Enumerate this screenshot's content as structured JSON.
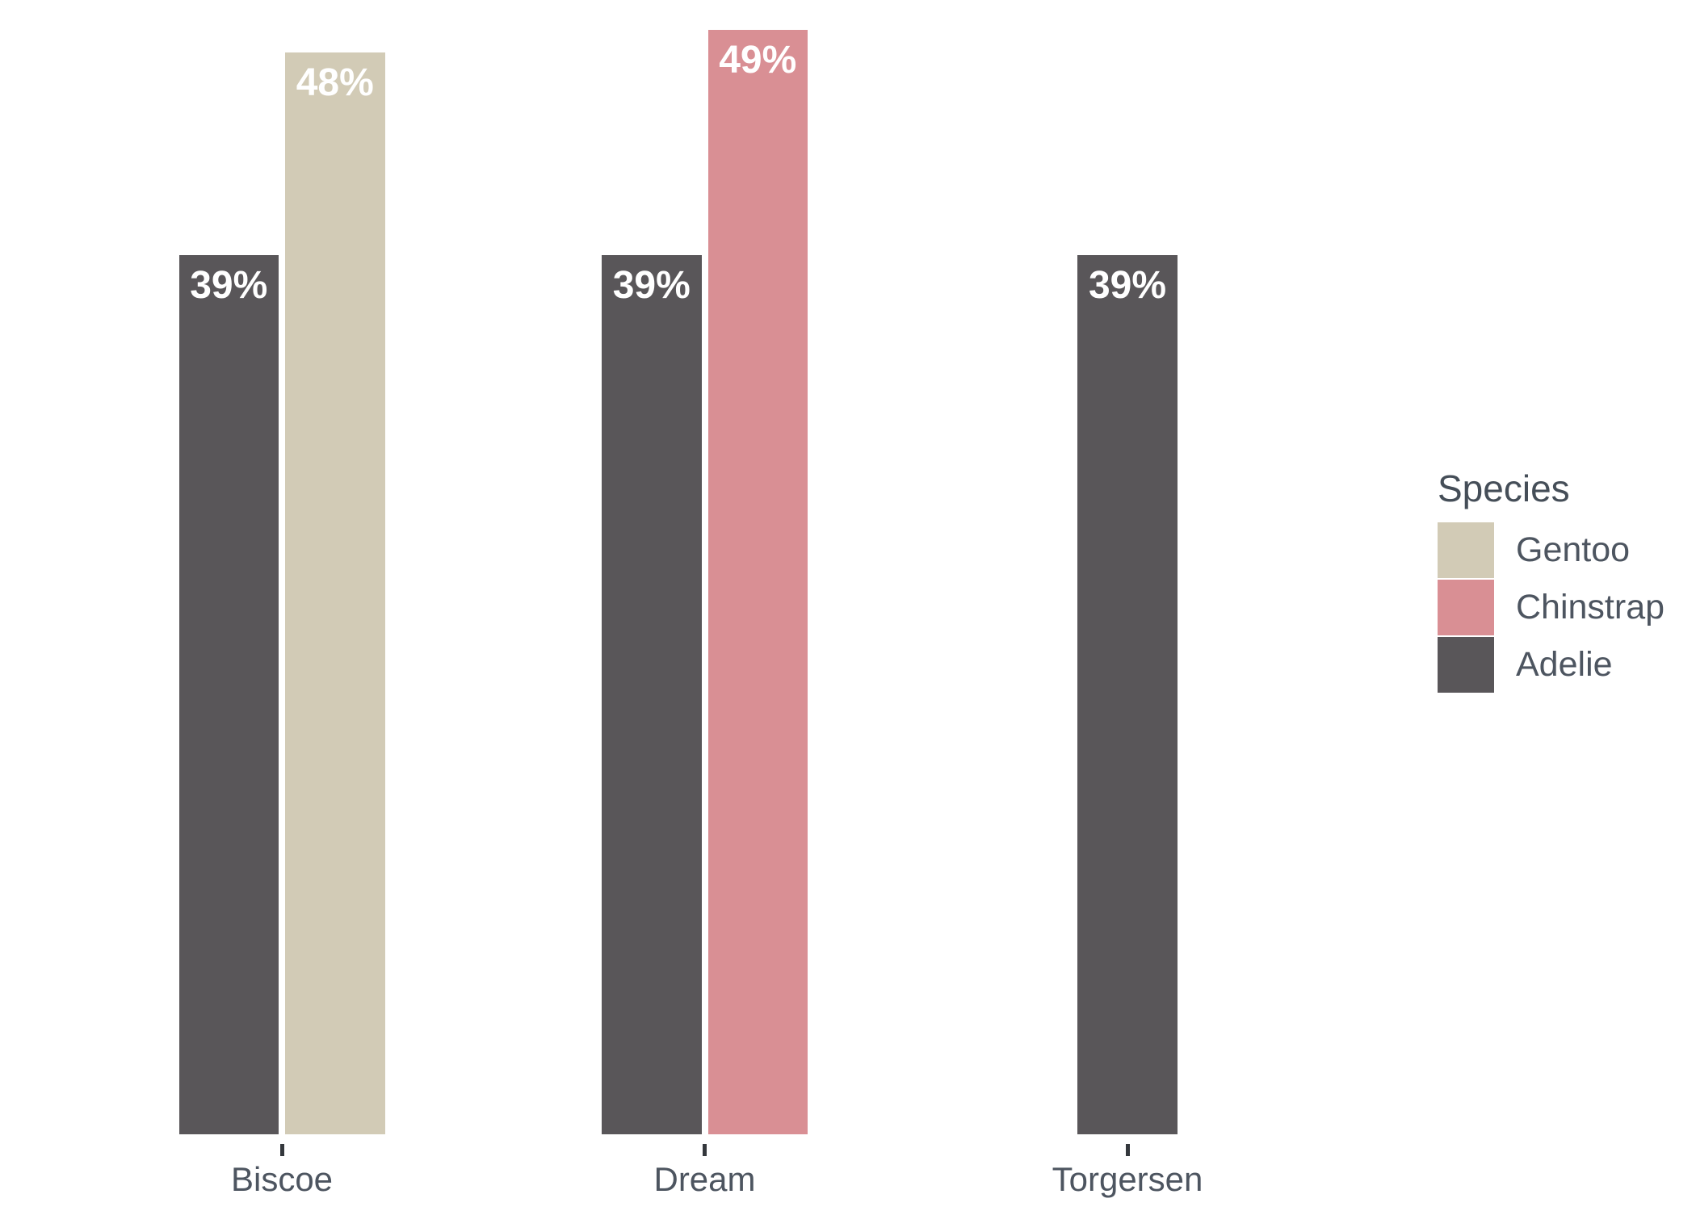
{
  "chart_data": {
    "type": "bar",
    "title": "",
    "xlabel": "",
    "ylabel": "",
    "unit": "%",
    "categories": [
      "Biscoe",
      "Dream",
      "Torgersen"
    ],
    "groups": [
      {
        "category": "Biscoe",
        "bars": [
          {
            "species": "Adelie",
            "value": 39,
            "label": "39%"
          },
          {
            "species": "Gentoo",
            "value": 48,
            "label": "48%"
          }
        ]
      },
      {
        "category": "Dream",
        "bars": [
          {
            "species": "Adelie",
            "value": 39,
            "label": "39%"
          },
          {
            "species": "Chinstrap",
            "value": 49,
            "label": "49%"
          }
        ]
      },
      {
        "category": "Torgersen",
        "bars": [
          {
            "species": "Adelie",
            "value": 39,
            "label": "39%"
          }
        ]
      }
    ],
    "series_colors": {
      "Gentoo": "#D2CBB6",
      "Chinstrap": "#D98F94",
      "Adelie": "#595659"
    },
    "legend": {
      "title": "Species",
      "position": "right",
      "entries": [
        {
          "name": "Gentoo",
          "color": "#D2CBB6"
        },
        {
          "name": "Chinstrap",
          "color": "#D98F94"
        },
        {
          "name": "Adelie",
          "color": "#595659"
        }
      ]
    },
    "axes": {
      "y_axis_visible": false,
      "grid": false,
      "ylim": [
        0,
        50
      ],
      "x_tick_marks": true
    },
    "value_labels_inside_bars": true
  },
  "colors": {
    "background": "#FFFFFF",
    "bar_label_text": "#FFFFFF",
    "axis_text": "#4D5560",
    "tick_mark": "#34383C"
  }
}
